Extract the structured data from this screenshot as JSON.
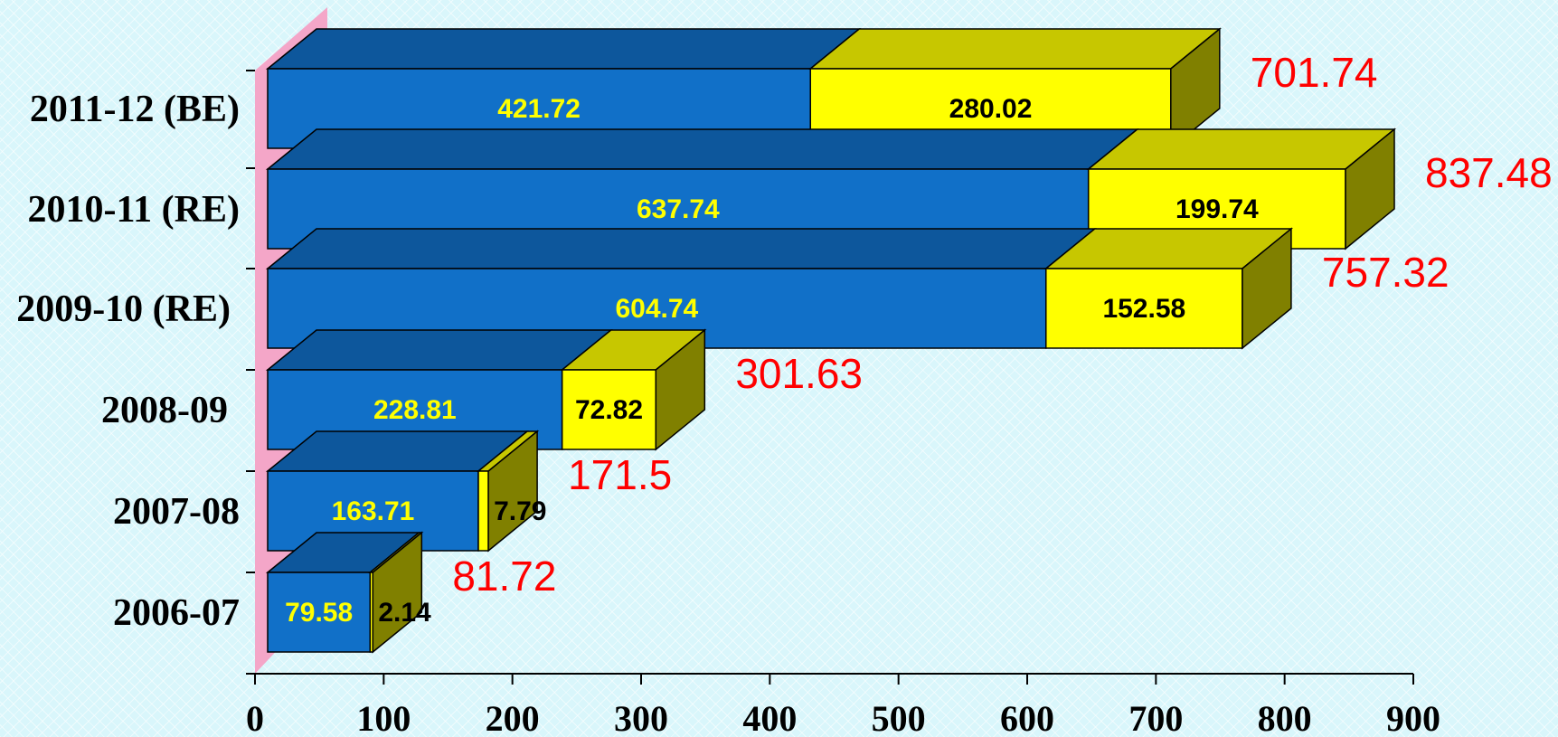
{
  "chart_data": {
    "type": "bar",
    "orientation": "horizontal",
    "stacked": true,
    "style": "3d",
    "categories": [
      "2006-07",
      "2007-08",
      "2008-09",
      "2009-10 (RE)",
      "2010-11 (RE)",
      "2011-12 (BE)"
    ],
    "series": [
      {
        "values": [
          79.58,
          163.71,
          228.81,
          604.74,
          637.74,
          421.72
        ],
        "color": "#1170c8",
        "label_color": "#ffff00"
      },
      {
        "values": [
          2.14,
          7.79,
          72.82,
          152.58,
          199.74,
          280.02
        ],
        "color": "#ffff00",
        "label_color": "#000000"
      }
    ],
    "data_labels": [
      [
        "79.58",
        "163.71",
        "228.81",
        "604.74",
        "637.74",
        "421.72"
      ],
      [
        "2.14",
        "7.79",
        "72.82",
        "152.58",
        "199.74",
        "280.02"
      ]
    ],
    "totals": [
      "81.72",
      "171.5",
      "301.63",
      "757.32",
      "837.48",
      "701.74"
    ],
    "total_color": "#ff0000",
    "xlim": [
      0,
      900
    ],
    "x_ticks": [
      "0",
      "100",
      "200",
      "300",
      "400",
      "500",
      "600",
      "700",
      "800",
      "900"
    ],
    "grid": false,
    "legend": "none",
    "title": "",
    "xlabel": "",
    "ylabel": ""
  }
}
